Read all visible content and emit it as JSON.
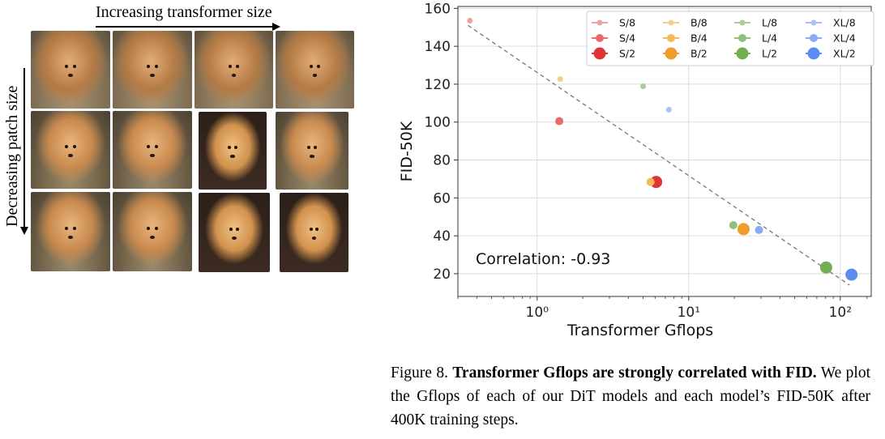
{
  "figure": {
    "label_top": "Increasing transformer size",
    "label_side": "Decreasing patch size",
    "caption_lead": "Figure 8.",
    "caption_bold": "Transformer Gflops are strongly correlated with FID.",
    "caption_rest": "We plot the Gflops of each of our DiT models and each model’s FID-50K after 400K training steps."
  },
  "colors": {
    "S": [
      "#f0a0a0",
      "#ea6a6a",
      "#e03434"
    ],
    "B": [
      "#f5cc8a",
      "#f3b95a",
      "#ef9c2b"
    ],
    "L": [
      "#a9cc96",
      "#92bf79",
      "#73ad55"
    ],
    "XL": [
      "#a9c3f6",
      "#88abf4",
      "#5b8cf0"
    ]
  },
  "chart_data": {
    "type": "scatter",
    "x_scale": "log",
    "xlabel": "Transformer Gflops",
    "ylabel": "FID-50K",
    "xlim": [
      0.3,
      160
    ],
    "ylim": [
      8,
      161
    ],
    "yticks": [
      20,
      40,
      60,
      80,
      100,
      120,
      140,
      160
    ],
    "xticks": [
      {
        "value": 1,
        "label": "10⁰"
      },
      {
        "value": 10,
        "label": "10¹"
      },
      {
        "value": 100,
        "label": "10²"
      }
    ],
    "grid": true,
    "legend_position": "top-right",
    "annotation": "Correlation: -0.93",
    "trendline": {
      "x": [
        0.35,
        115
      ],
      "y": [
        151,
        14
      ]
    },
    "points": [
      {
        "name": "S/8",
        "model": "S",
        "patch": 8,
        "x": 0.36,
        "y": 153.5
      },
      {
        "name": "S/4",
        "model": "S",
        "patch": 4,
        "x": 1.4,
        "y": 100.5
      },
      {
        "name": "S/2",
        "model": "S",
        "patch": 2,
        "x": 6.1,
        "y": 68.4
      },
      {
        "name": "B/8",
        "model": "B",
        "patch": 8,
        "x": 1.42,
        "y": 122.7
      },
      {
        "name": "B/4",
        "model": "B",
        "patch": 4,
        "x": 5.6,
        "y": 68.4
      },
      {
        "name": "B/2",
        "model": "B",
        "patch": 2,
        "x": 23.0,
        "y": 43.5
      },
      {
        "name": "L/8",
        "model": "L",
        "patch": 8,
        "x": 5.0,
        "y": 118.9
      },
      {
        "name": "L/4",
        "model": "L",
        "patch": 4,
        "x": 19.7,
        "y": 45.6
      },
      {
        "name": "L/2",
        "model": "L",
        "patch": 2,
        "x": 80.7,
        "y": 23.3
      },
      {
        "name": "XL/8",
        "model": "XL",
        "patch": 8,
        "x": 7.4,
        "y": 106.5
      },
      {
        "name": "XL/4",
        "model": "XL",
        "patch": 4,
        "x": 29.1,
        "y": 43.1
      },
      {
        "name": "XL/2",
        "model": "XL",
        "patch": 2,
        "x": 118.6,
        "y": 19.5
      }
    ],
    "legend": [
      "S/8",
      "S/4",
      "S/2",
      "B/8",
      "B/4",
      "B/2",
      "L/8",
      "L/4",
      "L/2",
      "XL/8",
      "XL/4",
      "XL/2"
    ]
  }
}
